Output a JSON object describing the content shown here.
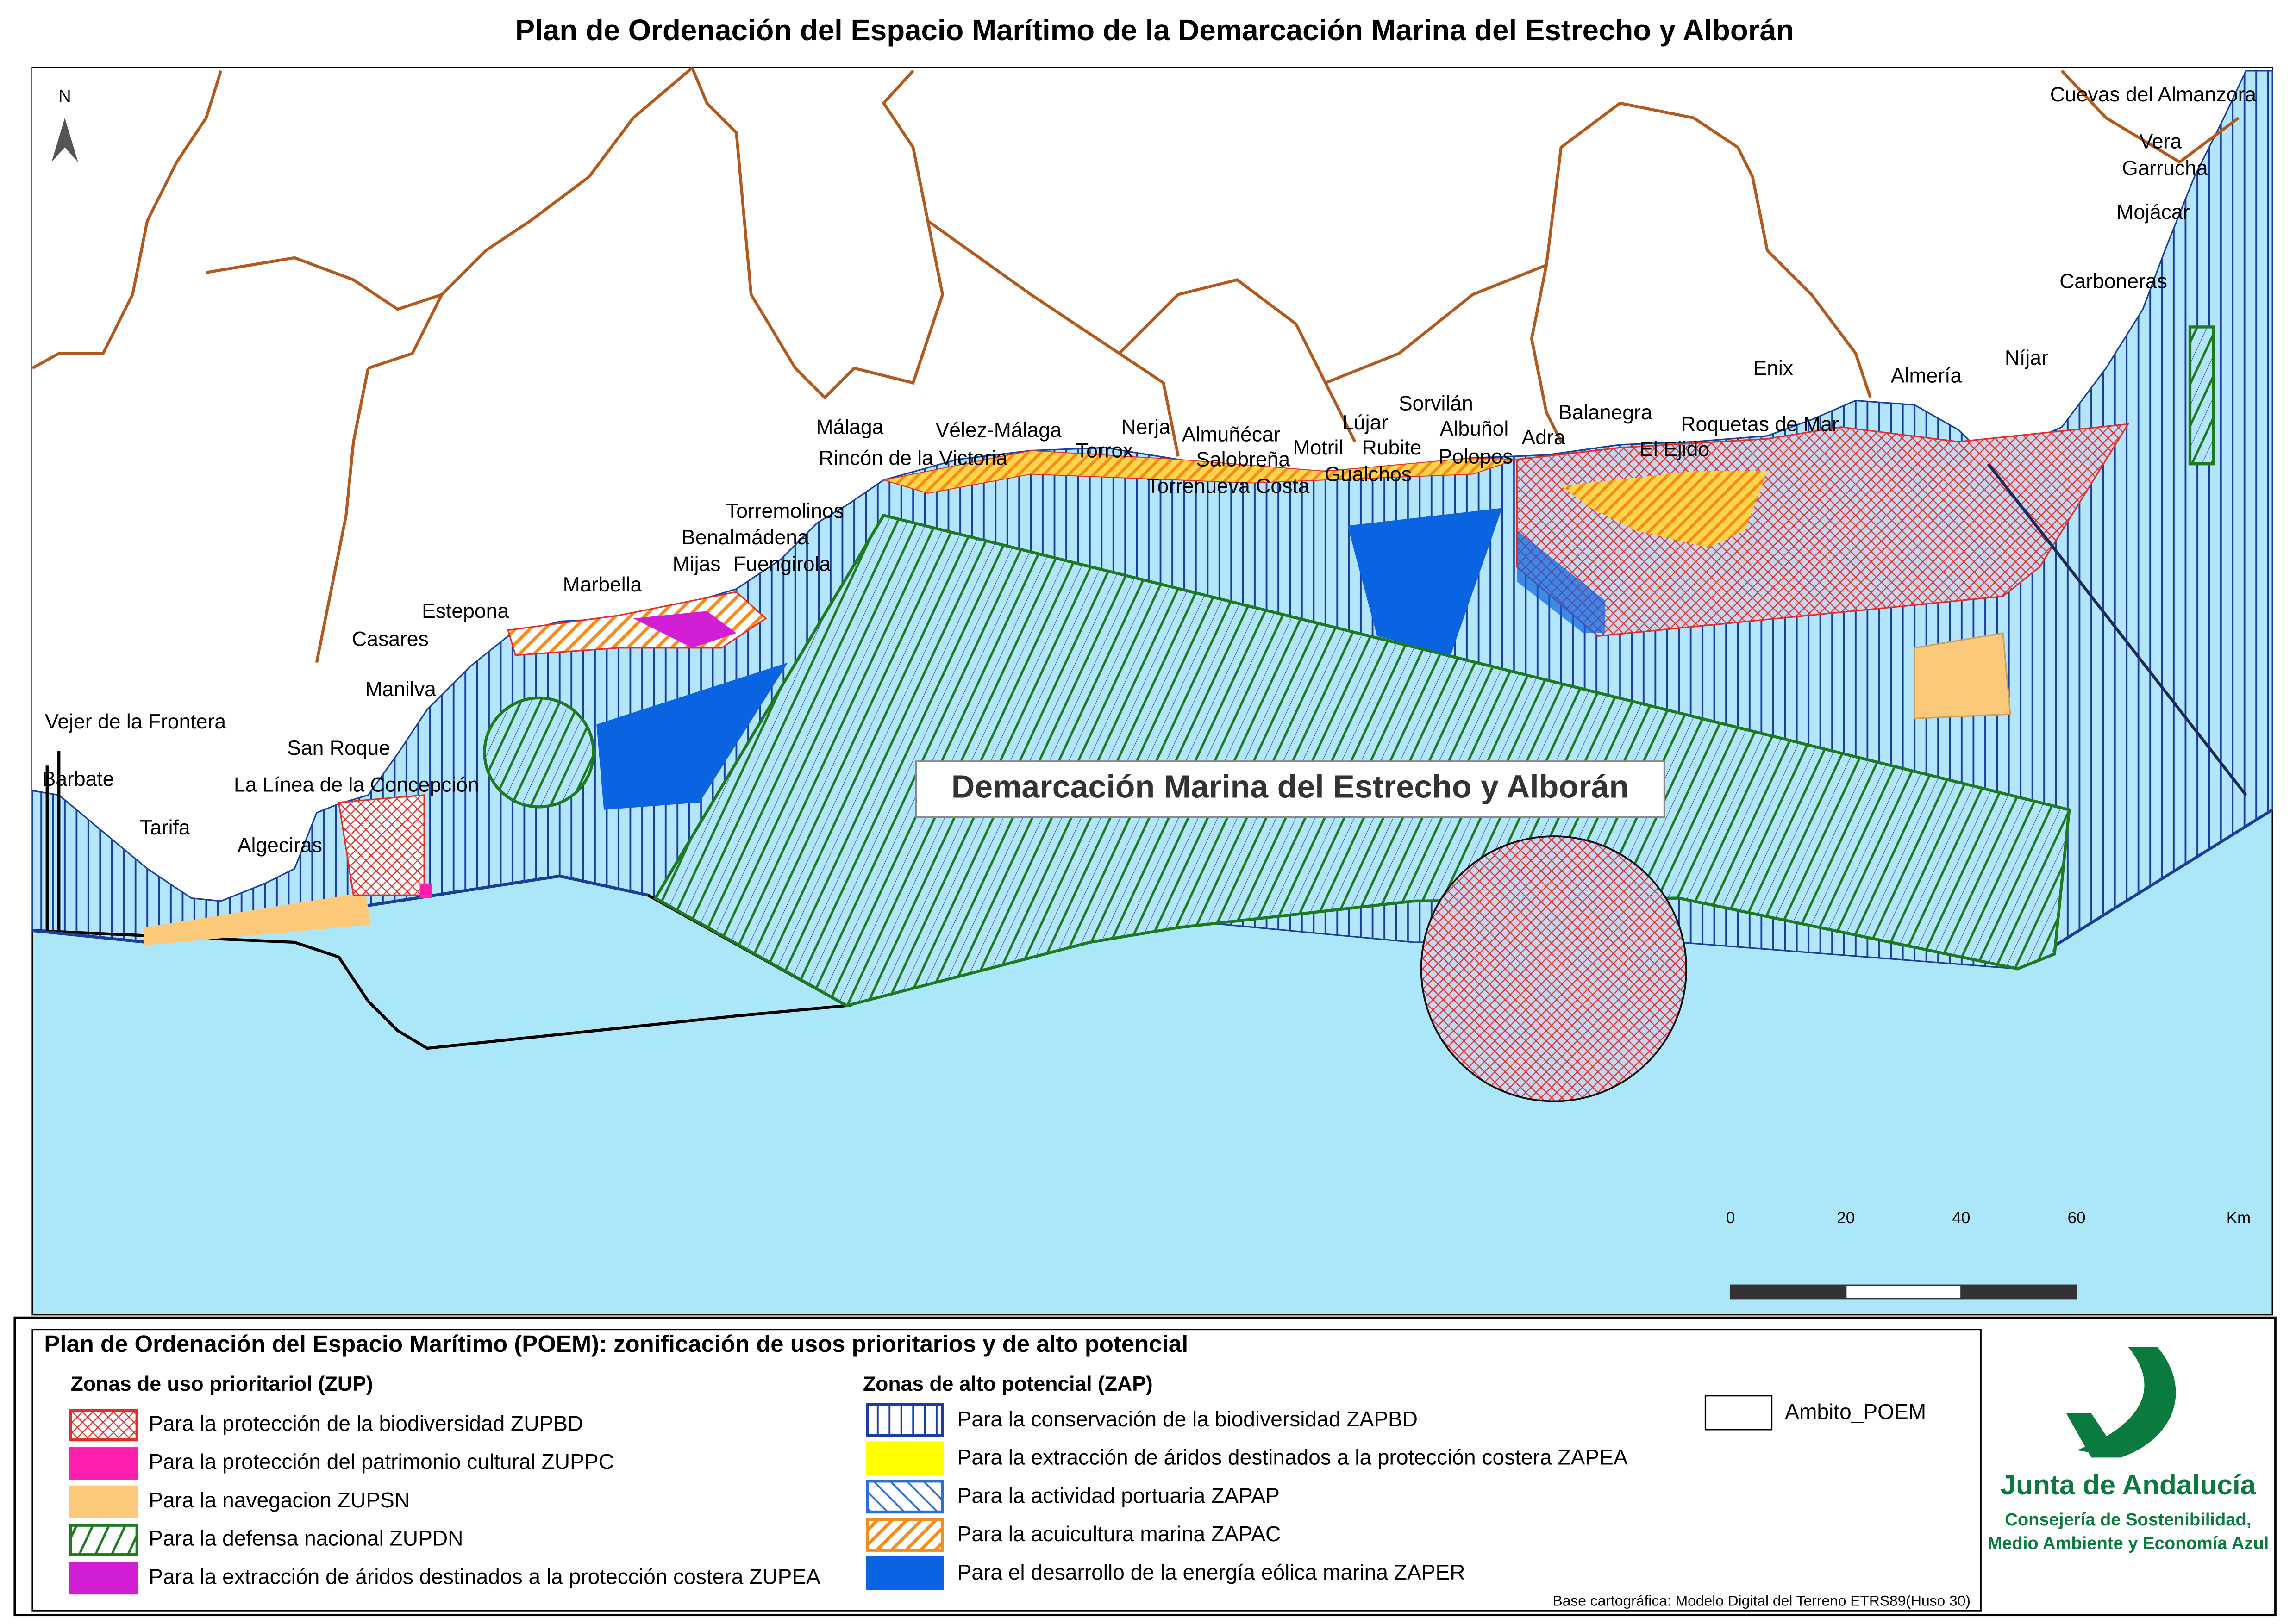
{
  "title": "Plan de Ordenación del Espacio Marítimo de la Demarcación  Marina del Estrecho y Alborán",
  "north": "N",
  "places": [
    "Cuevas del Almanzora",
    "Vera",
    "Garrucha",
    "Mojácar",
    "Carboneras",
    "Níjar",
    "Almería",
    "Enix",
    "Roquetas de Mar",
    "Balanegra",
    "El Ejido",
    "Adra",
    "Sorvilán",
    "Albuñol",
    "Polopos",
    "Lújar",
    "Rubite",
    "Gualchos",
    "Motril",
    "Almuñécar",
    "Salobreña",
    "Torrenueva Costa",
    "Nerja",
    "Torrox",
    "Vélez-Málaga",
    "Málaga",
    "Rincón de la Victoria",
    "Torremolinos",
    "Benalmádena",
    "Mijas",
    "Fuengirola",
    "Marbella",
    "Estepona",
    "Casares",
    "Manilva",
    "Vejer de la Frontera",
    "San Roque",
    "Barbate",
    "La Línea de la Concepción",
    "Tarifa",
    "Algeciras"
  ],
  "sea_label": "Demarcación Marina del Estrecho y Alborán",
  "scale": {
    "ticks": [
      0,
      20,
      40,
      60
    ],
    "unit": "Km"
  },
  "legend": {
    "title": "Plan de Ordenación del Espacio Marítimo (POEM): zonificación de usos prioritarios y de alto potencial",
    "zup": {
      "heading": "Zonas de uso prioritariol (ZUP)",
      "items": [
        "Para la protección de la biodiversidad ZUPBD",
        "Para la protección del patrimonio cultural ZUPPC",
        "Para la navegacion ZUPSN",
        "Para la defensa nacional ZUPDN",
        "Para la extracción de áridos destinados a la protección costera ZUPEA"
      ]
    },
    "zap": {
      "heading": "Zonas de alto potencial (ZAP)",
      "items": [
        "Para la conservación de la biodiversidad ZAPBD",
        "Para la extracción de áridos destinados a la protección costera ZAPEA",
        "Para la actividad portuaria ZAPAP",
        "Para la acuicultura marina ZAPAC",
        "Para el desarrollo de la energía eólica marina ZAPER"
      ]
    },
    "ambito": "Ambito_POEM"
  },
  "logo": {
    "name": "Junta de Andalucía",
    "lines": [
      "Consejería de Sostenibilidad,",
      "Medio Ambiente y Economía Azul"
    ]
  },
  "source": "Base cartográfica: Modelo Digital del Terreno ETRS89(Huso 30)"
}
